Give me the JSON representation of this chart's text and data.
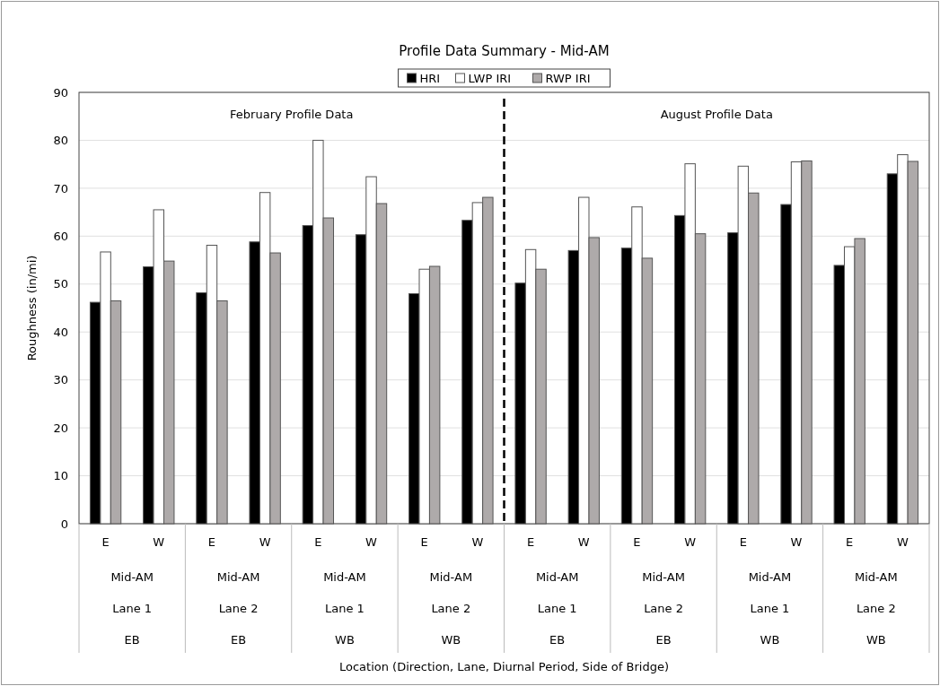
{
  "chart_data": {
    "type": "bar",
    "title": "Profile Data Summary - Mid-AM",
    "ylabel": "Roughness (in/mi)",
    "categories": [
      "E",
      "W",
      "E",
      "W",
      "E",
      "W",
      "E",
      "W",
      "E",
      "W",
      "E",
      "W",
      "E",
      "W",
      "E",
      "W"
    ],
    "series": [
      {
        "name": "HRI",
        "color": "#000000",
        "values": [
          46.2,
          53.6,
          48.2,
          58.8,
          62.2,
          60.3,
          48.0,
          63.3,
          50.2,
          57.0,
          57.5,
          64.3,
          60.7,
          66.6,
          53.9,
          73.0
        ]
      },
      {
        "name": "LWP IRI",
        "color": "#ffffff",
        "values": [
          56.7,
          65.5,
          58.1,
          69.1,
          80.0,
          72.4,
          53.1,
          67.0,
          57.2,
          68.1,
          66.1,
          75.1,
          74.6,
          75.5,
          57.8,
          77.0
        ]
      },
      {
        "name": "RWP IRI",
        "color": "#aeaaaa",
        "values": [
          46.5,
          54.8,
          46.5,
          56.5,
          63.8,
          66.8,
          53.7,
          68.1,
          53.1,
          59.7,
          55.4,
          60.5,
          69.0,
          75.7,
          59.5,
          75.6
        ]
      }
    ],
    "annotations": [
      "February Profile Data",
      "August Profile Data",
      "Mid-AM",
      "Lane 1",
      "EB",
      "Mid-AM",
      "Lane 2",
      "EB",
      "Mid-AM",
      "Lane 1",
      "WB",
      "Mid-AM",
      "Lane 2",
      "WB",
      "Mid-AM",
      "Lane 1",
      "EB",
      "Mid-AM",
      "Lane 2",
      "EB",
      "Mid-AM",
      "Lane 1",
      "WB",
      "Mid-AM",
      "Lane 2",
      "WB",
      "Location (Direction, Lane, Diurnal Period, Side of Bridge)"
    ],
    "ylim": [
      0,
      90
    ],
    "yticks": [
      0,
      10,
      20,
      30,
      40,
      50,
      60,
      70,
      80,
      90
    ],
    "grid": "y",
    "legend": "top"
  }
}
